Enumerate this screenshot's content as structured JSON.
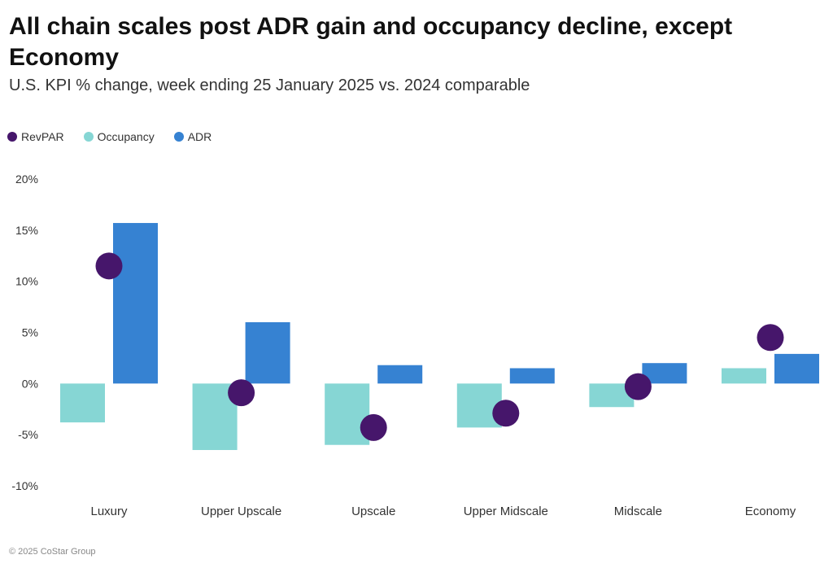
{
  "title": "All chain scales post ADR gain and occupancy decline, except Economy",
  "subtitle": "U.S. KPI % change, week ending 25 January 2025 vs. 2024 comparable",
  "footer": "© 2025 CoStar Group",
  "legend": [
    {
      "label": "RevPAR",
      "color": "#46166b"
    },
    {
      "label": "Occupancy",
      "color": "#86d6d4"
    },
    {
      "label": "ADR",
      "color": "#3682d2"
    }
  ],
  "chart_data": {
    "type": "bar",
    "categories": [
      "Luxury",
      "Upper Upscale",
      "Upscale",
      "Upper Midscale",
      "Midscale",
      "Economy"
    ],
    "series": [
      {
        "name": "Occupancy",
        "kind": "bar",
        "color": "#86d6d4",
        "values": [
          -3.8,
          -6.5,
          -6.0,
          -4.3,
          -2.3,
          1.5
        ]
      },
      {
        "name": "ADR",
        "kind": "bar",
        "color": "#3682d2",
        "values": [
          15.7,
          6.0,
          1.8,
          1.5,
          2.0,
          2.9
        ]
      },
      {
        "name": "RevPAR",
        "kind": "dot",
        "color": "#46166b",
        "values": [
          11.5,
          -0.9,
          -4.3,
          -2.9,
          -0.3,
          4.5
        ]
      }
    ],
    "yticks": [
      "20%",
      "15%",
      "10%",
      "5%",
      "0%",
      "-5%",
      "-10%"
    ],
    "ytick_values": [
      20,
      15,
      10,
      5,
      0,
      -5,
      -10
    ],
    "ylim": [
      -10,
      20
    ],
    "grid": false,
    "legend_position": "top-left"
  }
}
